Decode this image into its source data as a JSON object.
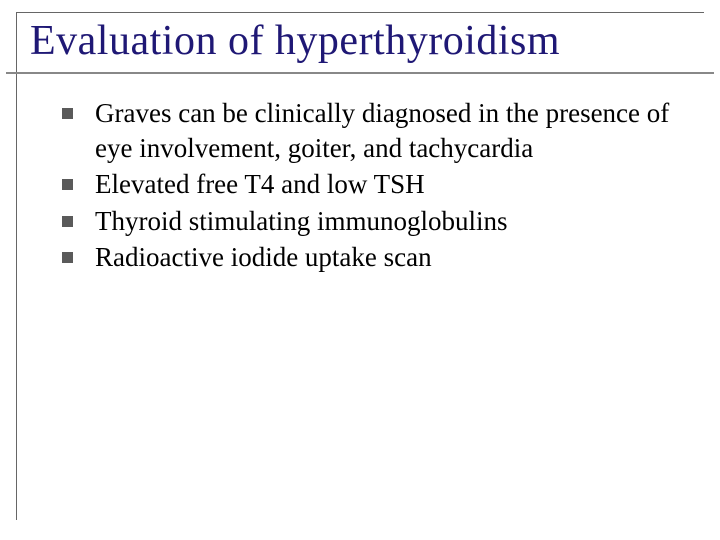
{
  "slide": {
    "title": "Evaluation of hyperthyroidism",
    "title_color": "#1f1875",
    "title_fontsize": 42,
    "body_fontsize": 27,
    "body_color": "#000000",
    "bullet_color": "#5a5a5a",
    "bullet_size": 11,
    "background": "#ffffff",
    "frame_border_color": "#666666",
    "underline_color": "#888888",
    "bullets": [
      "Graves can be clinically diagnosed in  the presence of eye involvement, goiter, and tachycardia",
      "Elevated free T4 and low TSH",
      "Thyroid stimulating immunoglobulins",
      "Radioactive iodide uptake scan"
    ]
  }
}
